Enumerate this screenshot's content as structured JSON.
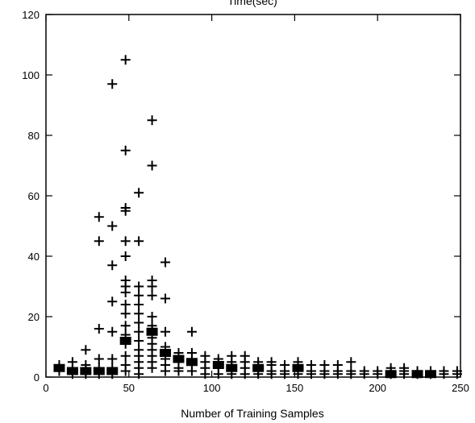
{
  "chart_data": {
    "type": "scatter",
    "title": "Time(sec)",
    "xlabel": "Number of Training Samples",
    "ylabel": "",
    "xlim": [
      0,
      250
    ],
    "ylim": [
      0,
      120
    ],
    "x_ticks": [
      0,
      50,
      100,
      150,
      200,
      250
    ],
    "y_ticks": [
      0,
      20,
      40,
      60,
      80,
      100,
      120
    ],
    "grid": false,
    "legend": "none",
    "marker": "plus",
    "series": [
      {
        "points": [
          [
            8,
            3
          ],
          [
            8,
            2
          ],
          [
            8,
            4
          ],
          [
            16,
            1
          ],
          [
            16,
            3
          ],
          [
            16,
            5
          ],
          [
            16,
            2
          ],
          [
            24,
            1
          ],
          [
            24,
            2
          ],
          [
            24,
            4
          ],
          [
            24,
            9
          ],
          [
            32,
            1
          ],
          [
            32,
            3
          ],
          [
            32,
            6
          ],
          [
            32,
            16
          ],
          [
            32,
            45
          ],
          [
            32,
            53
          ],
          [
            40,
            1
          ],
          [
            40,
            3
          ],
          [
            40,
            6
          ],
          [
            40,
            15
          ],
          [
            40,
            25
          ],
          [
            40,
            37
          ],
          [
            40,
            50
          ],
          [
            40,
            97
          ],
          [
            48,
            2
          ],
          [
            48,
            4
          ],
          [
            48,
            7
          ],
          [
            48,
            11
          ],
          [
            48,
            14
          ],
          [
            48,
            17
          ],
          [
            48,
            21
          ],
          [
            48,
            24
          ],
          [
            48,
            28
          ],
          [
            48,
            30
          ],
          [
            48,
            32
          ],
          [
            48,
            40
          ],
          [
            48,
            45
          ],
          [
            48,
            55
          ],
          [
            48,
            56
          ],
          [
            48,
            75
          ],
          [
            48,
            105
          ],
          [
            56,
            1
          ],
          [
            56,
            3
          ],
          [
            56,
            5
          ],
          [
            56,
            7
          ],
          [
            56,
            9
          ],
          [
            56,
            12
          ],
          [
            56,
            15
          ],
          [
            56,
            18
          ],
          [
            56,
            21
          ],
          [
            56,
            24
          ],
          [
            56,
            27
          ],
          [
            56,
            30
          ],
          [
            56,
            45
          ],
          [
            56,
            61
          ],
          [
            64,
            3
          ],
          [
            64,
            5
          ],
          [
            64,
            7
          ],
          [
            64,
            9
          ],
          [
            64,
            11
          ],
          [
            64,
            13
          ],
          [
            64,
            16
          ],
          [
            64,
            17
          ],
          [
            64,
            20
          ],
          [
            64,
            27
          ],
          [
            64,
            30
          ],
          [
            64,
            32
          ],
          [
            64,
            70
          ],
          [
            64,
            85
          ],
          [
            72,
            2
          ],
          [
            72,
            4
          ],
          [
            72,
            6
          ],
          [
            72,
            8
          ],
          [
            72,
            10
          ],
          [
            72,
            15
          ],
          [
            72,
            26
          ],
          [
            72,
            38
          ],
          [
            80,
            2
          ],
          [
            80,
            3
          ],
          [
            80,
            5
          ],
          [
            80,
            7
          ],
          [
            80,
            8
          ],
          [
            88,
            2
          ],
          [
            88,
            4
          ],
          [
            88,
            6
          ],
          [
            88,
            8
          ],
          [
            88,
            15
          ],
          [
            96,
            1
          ],
          [
            96,
            3
          ],
          [
            96,
            5
          ],
          [
            96,
            7
          ],
          [
            104,
            1
          ],
          [
            104,
            3
          ],
          [
            104,
            5
          ],
          [
            104,
            6
          ],
          [
            112,
            1
          ],
          [
            112,
            3
          ],
          [
            112,
            5
          ],
          [
            112,
            7
          ],
          [
            120,
            1
          ],
          [
            120,
            3
          ],
          [
            120,
            5
          ],
          [
            120,
            7
          ],
          [
            128,
            1
          ],
          [
            128,
            2
          ],
          [
            128,
            4
          ],
          [
            128,
            5
          ],
          [
            136,
            1
          ],
          [
            136,
            2
          ],
          [
            136,
            4
          ],
          [
            136,
            5
          ],
          [
            144,
            1
          ],
          [
            144,
            2
          ],
          [
            144,
            4
          ],
          [
            152,
            1
          ],
          [
            152,
            2
          ],
          [
            152,
            4
          ],
          [
            152,
            5
          ],
          [
            160,
            1
          ],
          [
            160,
            2
          ],
          [
            160,
            4
          ],
          [
            168,
            1
          ],
          [
            168,
            2
          ],
          [
            168,
            4
          ],
          [
            176,
            1
          ],
          [
            176,
            2
          ],
          [
            176,
            4
          ],
          [
            184,
            1
          ],
          [
            184,
            2
          ],
          [
            184,
            5
          ],
          [
            192,
            1
          ],
          [
            192,
            2
          ],
          [
            200,
            1
          ],
          [
            200,
            2
          ],
          [
            208,
            1
          ],
          [
            208,
            2
          ],
          [
            208,
            3
          ],
          [
            216,
            1
          ],
          [
            216,
            2
          ],
          [
            216,
            3
          ],
          [
            224,
            1
          ],
          [
            224,
            2
          ],
          [
            232,
            1
          ],
          [
            232,
            2
          ],
          [
            240,
            1
          ],
          [
            240,
            2
          ],
          [
            248,
            1
          ],
          [
            248,
            2
          ]
        ]
      }
    ],
    "dense_clusters": [
      [
        8,
        3
      ],
      [
        16,
        2
      ],
      [
        24,
        2
      ],
      [
        32,
        2
      ],
      [
        40,
        2
      ],
      [
        48,
        12
      ],
      [
        64,
        15
      ],
      [
        72,
        8
      ],
      [
        80,
        6
      ],
      [
        88,
        5
      ],
      [
        104,
        4
      ],
      [
        112,
        3
      ],
      [
        128,
        3
      ],
      [
        152,
        3
      ],
      [
        208,
        1
      ],
      [
        224,
        1
      ],
      [
        232,
        1
      ]
    ]
  }
}
